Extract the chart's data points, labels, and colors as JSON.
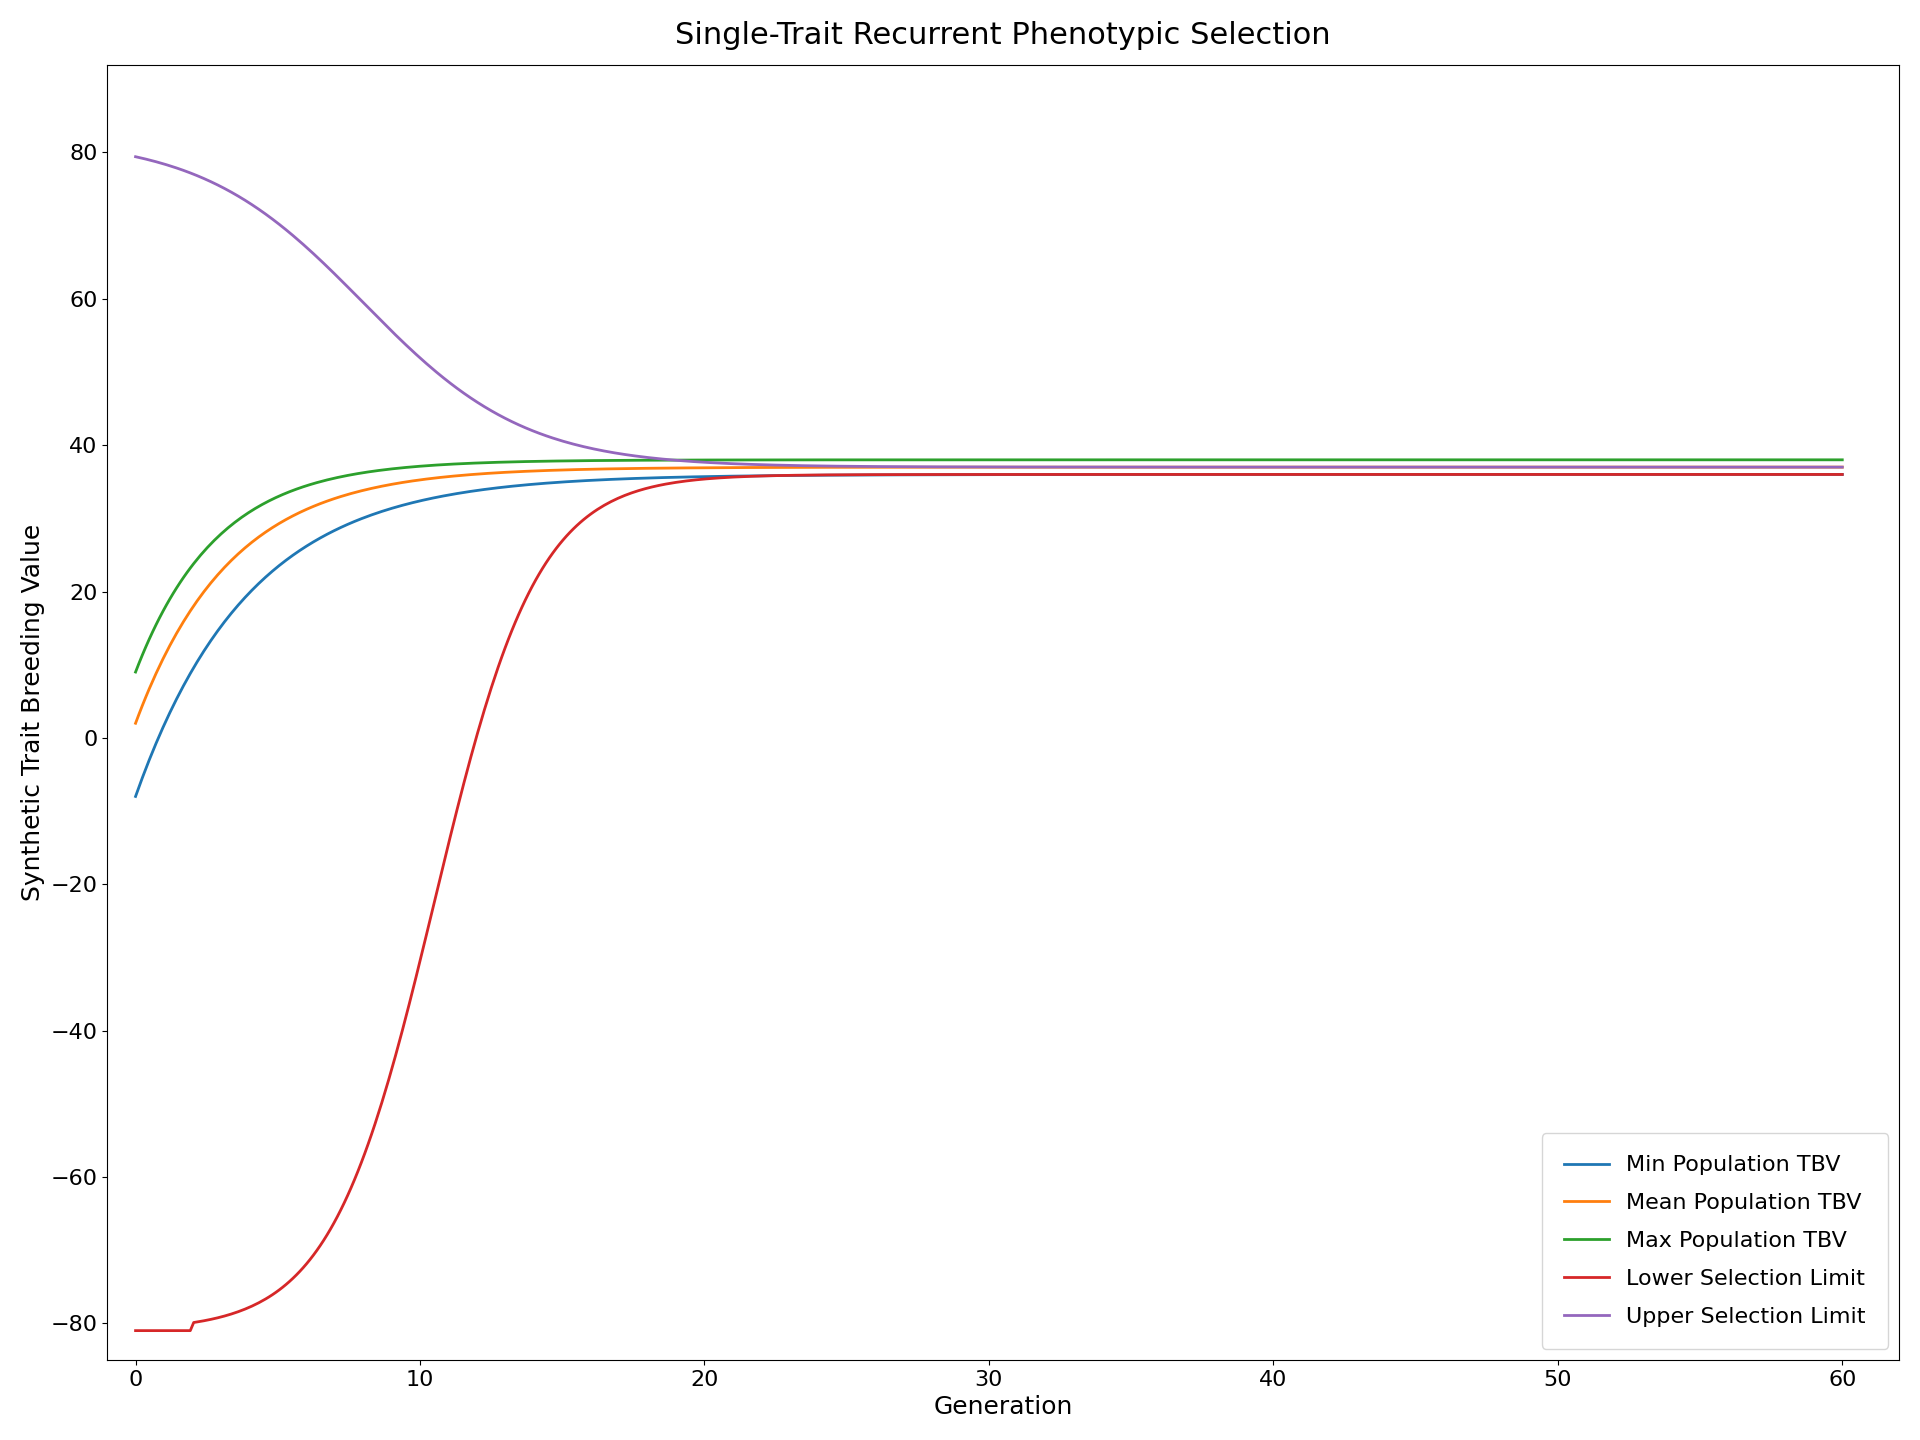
{
  "title": "Single-Trait Recurrent Phenotypic Selection",
  "xlabel": "Generation",
  "ylabel": "Synthetic Trait Breeding Value",
  "xlim": [
    -1,
    62
  ],
  "ylim": [
    -85,
    92
  ],
  "xticks": [
    0,
    10,
    20,
    30,
    40,
    50,
    60
  ],
  "yticks": [
    -80,
    -60,
    -40,
    -20,
    0,
    20,
    40,
    60,
    80
  ],
  "legend_labels": [
    "Min Population TBV",
    "Mean Population TBV",
    "Max Population TBV",
    "Lower Selection Limit",
    "Upper Selection Limit"
  ],
  "colors": {
    "min": "#1f77b4",
    "mean": "#ff7f0e",
    "max": "#2ca02c",
    "lower": "#d62728",
    "upper": "#9467bd"
  },
  "linewidth": 2.0,
  "title_fontsize": 22,
  "label_fontsize": 18,
  "tick_fontsize": 16,
  "legend_fontsize": 16,
  "figsize": [
    19.2,
    14.4
  ],
  "dpi": 100
}
